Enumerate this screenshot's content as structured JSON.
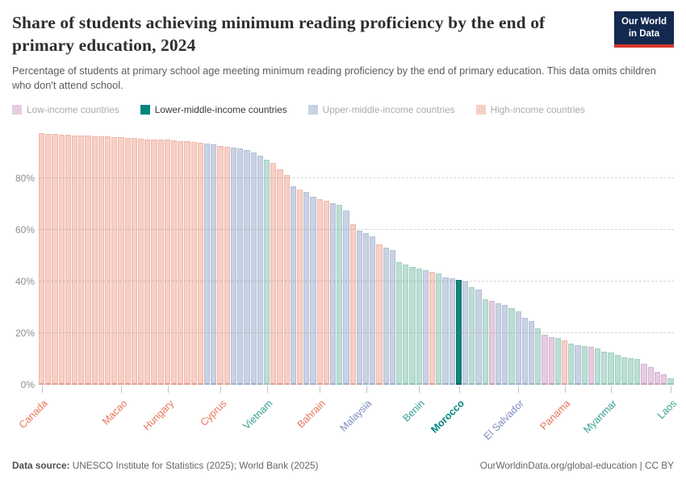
{
  "header": {
    "title": "Share of students achieving minimum reading proficiency by the end of primary education, 2024",
    "subtitle": "Percentage of students at primary school age meeting minimum reading proficiency by the end of primary education. This data omits children who don't attend school.",
    "logo": {
      "line1": "Our World",
      "line2": "in Data"
    }
  },
  "legend": {
    "items": [
      {
        "key": "low",
        "label": "Low-income countries",
        "active": false
      },
      {
        "key": "lower_middle",
        "label": "Lower-middle-income countries",
        "active": true
      },
      {
        "key": "upper_middle",
        "label": "Upper-middle-income countries",
        "active": false
      },
      {
        "key": "high",
        "label": "High-income countries",
        "active": false
      }
    ]
  },
  "colors": {
    "accent_navy": "#13294f",
    "accent_red": "#d8352a",
    "groups": {
      "H": {
        "name": "high-income",
        "fill": "#F8CFC6",
        "edge": "#EDB9AD",
        "base": "#DFA090",
        "label": "#E8745B"
      },
      "U": {
        "name": "upper-middle-income",
        "fill": "#C9D2E3",
        "edge": "#B4C0D6",
        "base": "#9FAECB",
        "label": "#7D8CBE"
      },
      "L": {
        "name": "lower-middle-income",
        "fill": "#BCDED4",
        "edge": "#A3CFC2",
        "base": "#8FC4B5",
        "label": "#35A093"
      },
      "M": {
        "name": "lower-middle-income-highlight",
        "fill": "#0F867D",
        "edge": "#0A6B64",
        "base": "#085E58",
        "label": "#00847E"
      },
      "P": {
        "name": "low-income",
        "fill": "#E5CCE3",
        "edge": "#D3B4D0",
        "base": "#C2A0BE",
        "label": "#B187AD"
      }
    },
    "legend_swatch_active": "#00847E",
    "grid": "rgba(125,125,125,0.33)",
    "axis_text": "#8e8e8e"
  },
  "chart_data": {
    "type": "bar",
    "title": "Share of students achieving minimum reading proficiency by the end of primary education, 2024",
    "year": "2024",
    "unit": "%",
    "ylim": [
      0,
      100
    ],
    "y_ticks": [
      0,
      20,
      40,
      60,
      80
    ],
    "grid": "dashed horizontal",
    "legend_position": "top",
    "highlighted_bar": "Morocco",
    "values": [
      97.3,
      97.1,
      97.0,
      96.9,
      96.8,
      96.6,
      96.5,
      96.4,
      96.3,
      96.2,
      96.1,
      96.0,
      95.9,
      95.7,
      95.5,
      95.3,
      95.1,
      95.0,
      94.9,
      94.8,
      94.6,
      94.4,
      94.2,
      94.0,
      93.7,
      93.4,
      93.2,
      92.6,
      92.2,
      91.8,
      91.4,
      91.0,
      89.8,
      88.6,
      87.2,
      86.0,
      83.5,
      81.2,
      76.8,
      75.6,
      74.6,
      72.8,
      71.8,
      71.2,
      70.2,
      69.7,
      67.6,
      62.2,
      59.6,
      58.6,
      57.6,
      54.2,
      53.1,
      52.2,
      47.6,
      46.6,
      45.6,
      45.1,
      44.3,
      43.8,
      43.1,
      41.6,
      41.1,
      40.6,
      39.8,
      37.9,
      36.8,
      33.2,
      32.6,
      31.4,
      31.0,
      29.5,
      28.5,
      25.8,
      24.5,
      21.7,
      19.2,
      18.5,
      18.0,
      17.0,
      16.0,
      15.4,
      15.0,
      14.5,
      13.9,
      12.9,
      12.3,
      11.4,
      10.7,
      10.2,
      9.8,
      8.2,
      6.7,
      5.1,
      3.9,
      2.3
    ],
    "groups": "HHHHHHHHHHHHHHHHHHHHHHHHHUUHHUUUUULHHHUHUUHHULUHUUUHUULLLLUHLUUMULULPUULUUULPPLHLULPLLLLLLLPPPPL",
    "group_key": {
      "H": "High-income countries",
      "U": "Upper-middle-income countries",
      "L": "Lower-middle-income countries",
      "M": "Lower-middle-income countries (highlighted: Morocco)",
      "P": "Low-income countries"
    },
    "x_tick_labels": [
      {
        "index": 0,
        "label": "Canada"
      },
      {
        "index": 12,
        "label": "Macao"
      },
      {
        "index": 19,
        "label": "Hungary"
      },
      {
        "index": 27,
        "label": "Cyprus"
      },
      {
        "index": 34,
        "label": "Vietnam"
      },
      {
        "index": 42,
        "label": "Bahrain"
      },
      {
        "index": 49,
        "label": "Malaysia"
      },
      {
        "index": 57,
        "label": "Benin"
      },
      {
        "index": 63,
        "label": "Morocco"
      },
      {
        "index": 72,
        "label": "El Salvador"
      },
      {
        "index": 79,
        "label": "Panama"
      },
      {
        "index": 86,
        "label": "Myanmar"
      },
      {
        "index": 95,
        "label": "Laos"
      }
    ]
  },
  "footer": {
    "source_label": "Data source:",
    "source_text": " UNESCO Institute for Statistics (2025); World Bank (2025)",
    "right_text": "OurWorldinData.org/global-education | CC BY"
  }
}
